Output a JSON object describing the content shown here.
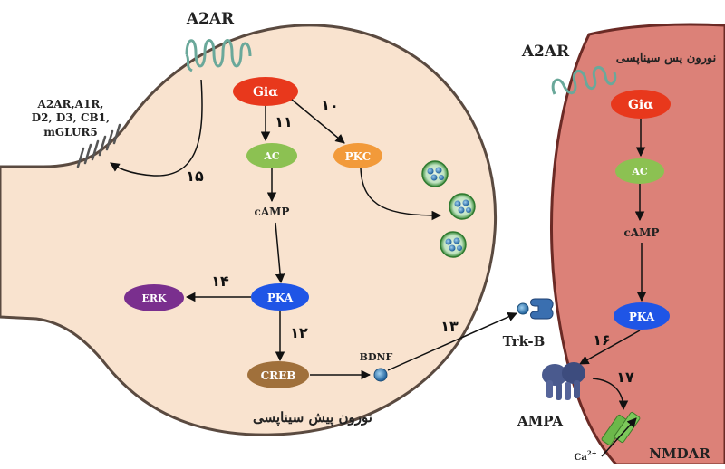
{
  "diagram": {
    "presynaptic_label": "نورون پیش سیناپسی",
    "postsynaptic_label": "نورون پس سیناپسی",
    "receptors_list": [
      "A2AR,A1R,",
      "D2, D3, CB1,",
      "mGLUR5"
    ],
    "pre": {
      "a2ar": "A2AR",
      "gia": "Giα",
      "ac": "AC",
      "camp": "cAMP",
      "pka": "PKA",
      "pkc": "PKC",
      "erk": "ERK",
      "creb": "CREB",
      "bdnf": "BDNF"
    },
    "post": {
      "a2ar": "A2AR",
      "gia": "Giα",
      "ac": "AC",
      "camp": "cAMP",
      "pka": "PKA",
      "trkb": "Trk-B",
      "ampa": "AMPA",
      "nmdar": "NMDAR",
      "ca": "Ca",
      "ca_sup": "2+"
    },
    "step_numbers": {
      "n10": "۱۰",
      "n11": "۱۱",
      "n12": "۱۲",
      "n13": "۱۳",
      "n14": "۱۴",
      "n15": "۱۵",
      "n16": "۱۶",
      "n17": "۱۷"
    },
    "colors": {
      "presynaptic_fill": "#f9e3cf",
      "postsynaptic_fill": "#dc8178",
      "gia": "#e8381c",
      "ac": "#8cc152",
      "pkc": "#f29a3a",
      "pka": "#1f55e6",
      "erk": "#7a2f8e",
      "creb": "#a0703b",
      "receptor": "#6aa89a",
      "ampa": "#4a5a8e",
      "nmdar": "#6cb84a"
    }
  }
}
